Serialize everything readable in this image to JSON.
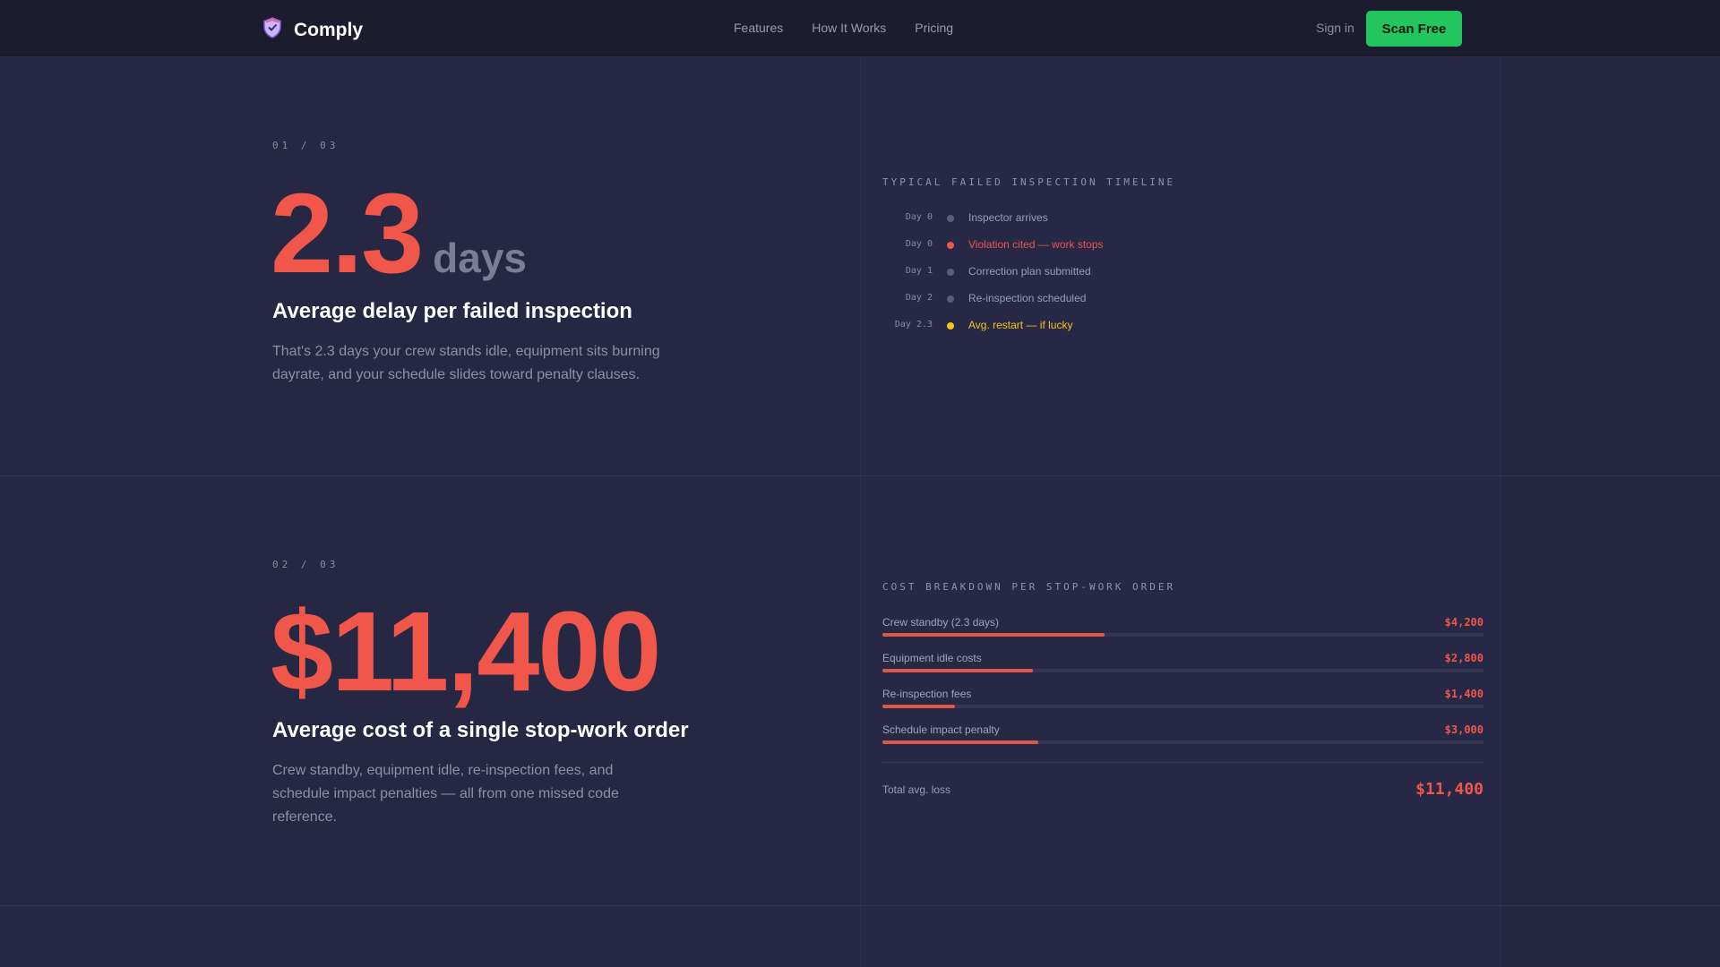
{
  "nav": {
    "brand": "Comply",
    "links": [
      "Features",
      "How It Works",
      "Pricing"
    ],
    "signin": "Sign in",
    "cta": "Scan Free"
  },
  "stat1": {
    "counter": "01 / 03",
    "value": "2.3",
    "unit": "days",
    "title": "Average delay per failed inspection",
    "description_lines": [
      "That's 2.3 days your crew stands idle, equipment sits burning",
      "dayrate, and your schedule slides toward penalty clauses."
    ]
  },
  "timeline": {
    "label": "TYPICAL FAILED INSPECTION TIMELINE",
    "items": [
      {
        "day": "Day 0",
        "text": "Inspector arrives",
        "color": "#5b5d78",
        "text_color": "#9c9db2"
      },
      {
        "day": "Day 0",
        "text": "Violation cited — work stops",
        "color": "#f0564a",
        "text_color": "#f0564a"
      },
      {
        "day": "Day 1",
        "text": "Correction plan submitted",
        "color": "#5b5d78",
        "text_color": "#9c9db2"
      },
      {
        "day": "Day 2",
        "text": "Re-inspection scheduled",
        "color": "#5b5d78",
        "text_color": "#9c9db2"
      },
      {
        "day": "Day 2.3",
        "text": "Avg. restart — if lucky",
        "color": "#f5c518",
        "text_color": "#f5c518"
      }
    ]
  },
  "stat2": {
    "counter": "02 / 03",
    "value": "$11,400",
    "title": "Average cost of a single stop-work order",
    "description_lines": [
      "Crew standby, equipment idle, re-inspection fees, and",
      "schedule impact penalties — all from one missed code",
      "reference."
    ]
  },
  "costs": {
    "label": "COST BREAKDOWN PER STOP-WORK ORDER",
    "items": [
      {
        "name": "Crew standby (2.3 days)",
        "value": "$4,200",
        "fraction": 0.37
      },
      {
        "name": "Equipment idle costs",
        "value": "$2,800",
        "fraction": 0.25
      },
      {
        "name": "Re-inspection fees",
        "value": "$1,400",
        "fraction": 0.12
      },
      {
        "name": "Schedule impact penalty",
        "value": "$3,000",
        "fraction": 0.26
      }
    ],
    "total_label": "Total avg. loss",
    "total_value": "$11,400"
  },
  "colors": {
    "accent_red": "#f0564a",
    "accent_green": "#22c55e",
    "accent_yellow": "#f5c518",
    "background": "#252743"
  }
}
